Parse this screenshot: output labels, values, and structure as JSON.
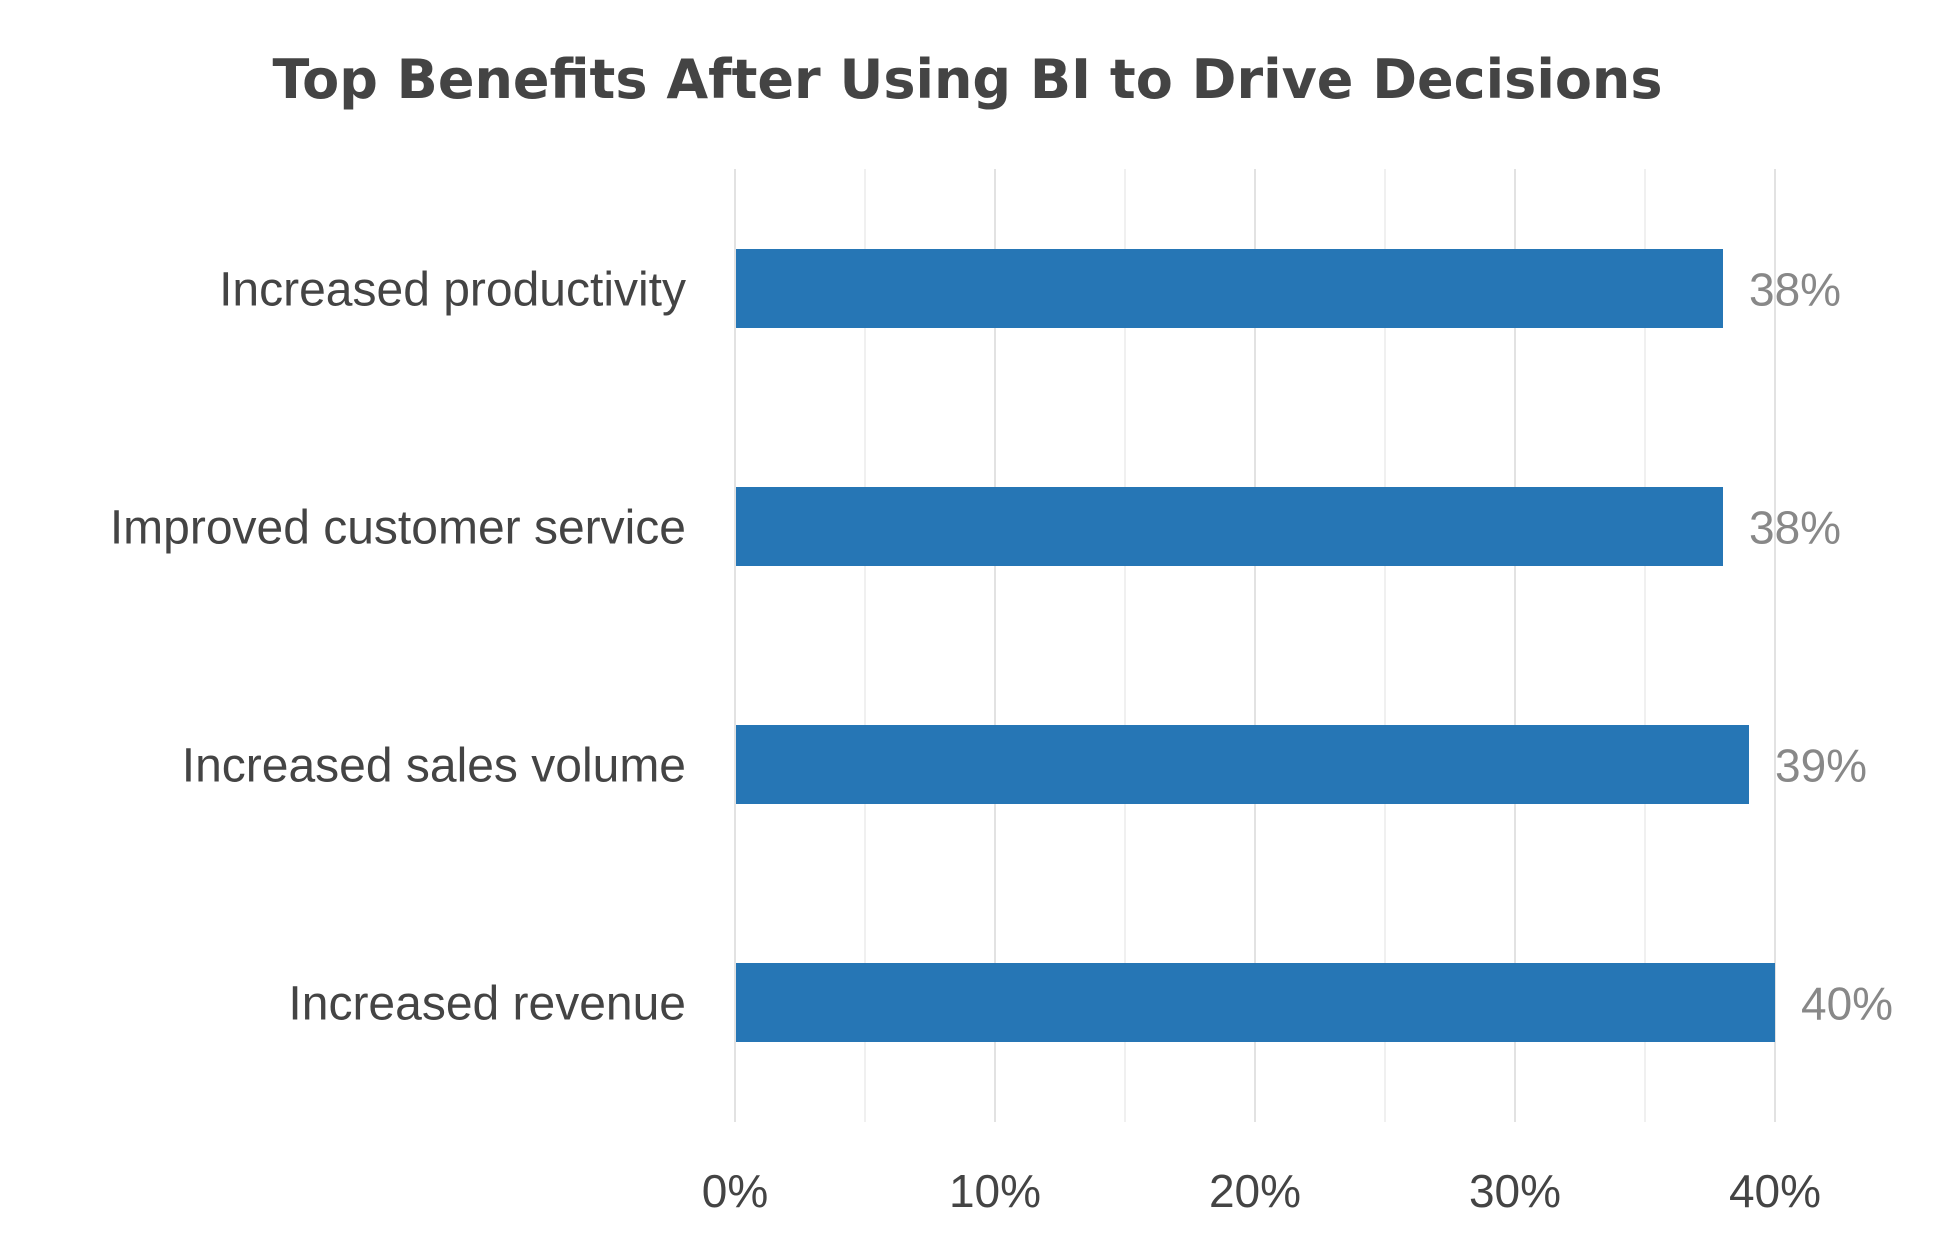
{
  "chart_data": {
    "type": "bar",
    "orientation": "horizontal",
    "title": "Top Benefits After Using BI to Drive Decisions",
    "categories": [
      "Increased productivity",
      "Improved customer service",
      "Increased sales volume",
      "Increased revenue"
    ],
    "values": [
      38,
      38,
      39,
      40
    ],
    "data_labels": [
      "38%",
      "38%",
      "39%",
      "40%"
    ],
    "xlim": [
      0,
      40
    ],
    "xticks": [
      0,
      10,
      20,
      30,
      40
    ],
    "xtick_labels": [
      "0%",
      "10%",
      "20%",
      "30%",
      "40%"
    ],
    "xlabel": "",
    "ylabel": "",
    "grid": true,
    "colors": {
      "bar": "#2676b5",
      "grid_major": "#e2e2e2",
      "grid_minor": "#f0f0f0",
      "text": "#444444",
      "value_label": "#888888"
    }
  }
}
